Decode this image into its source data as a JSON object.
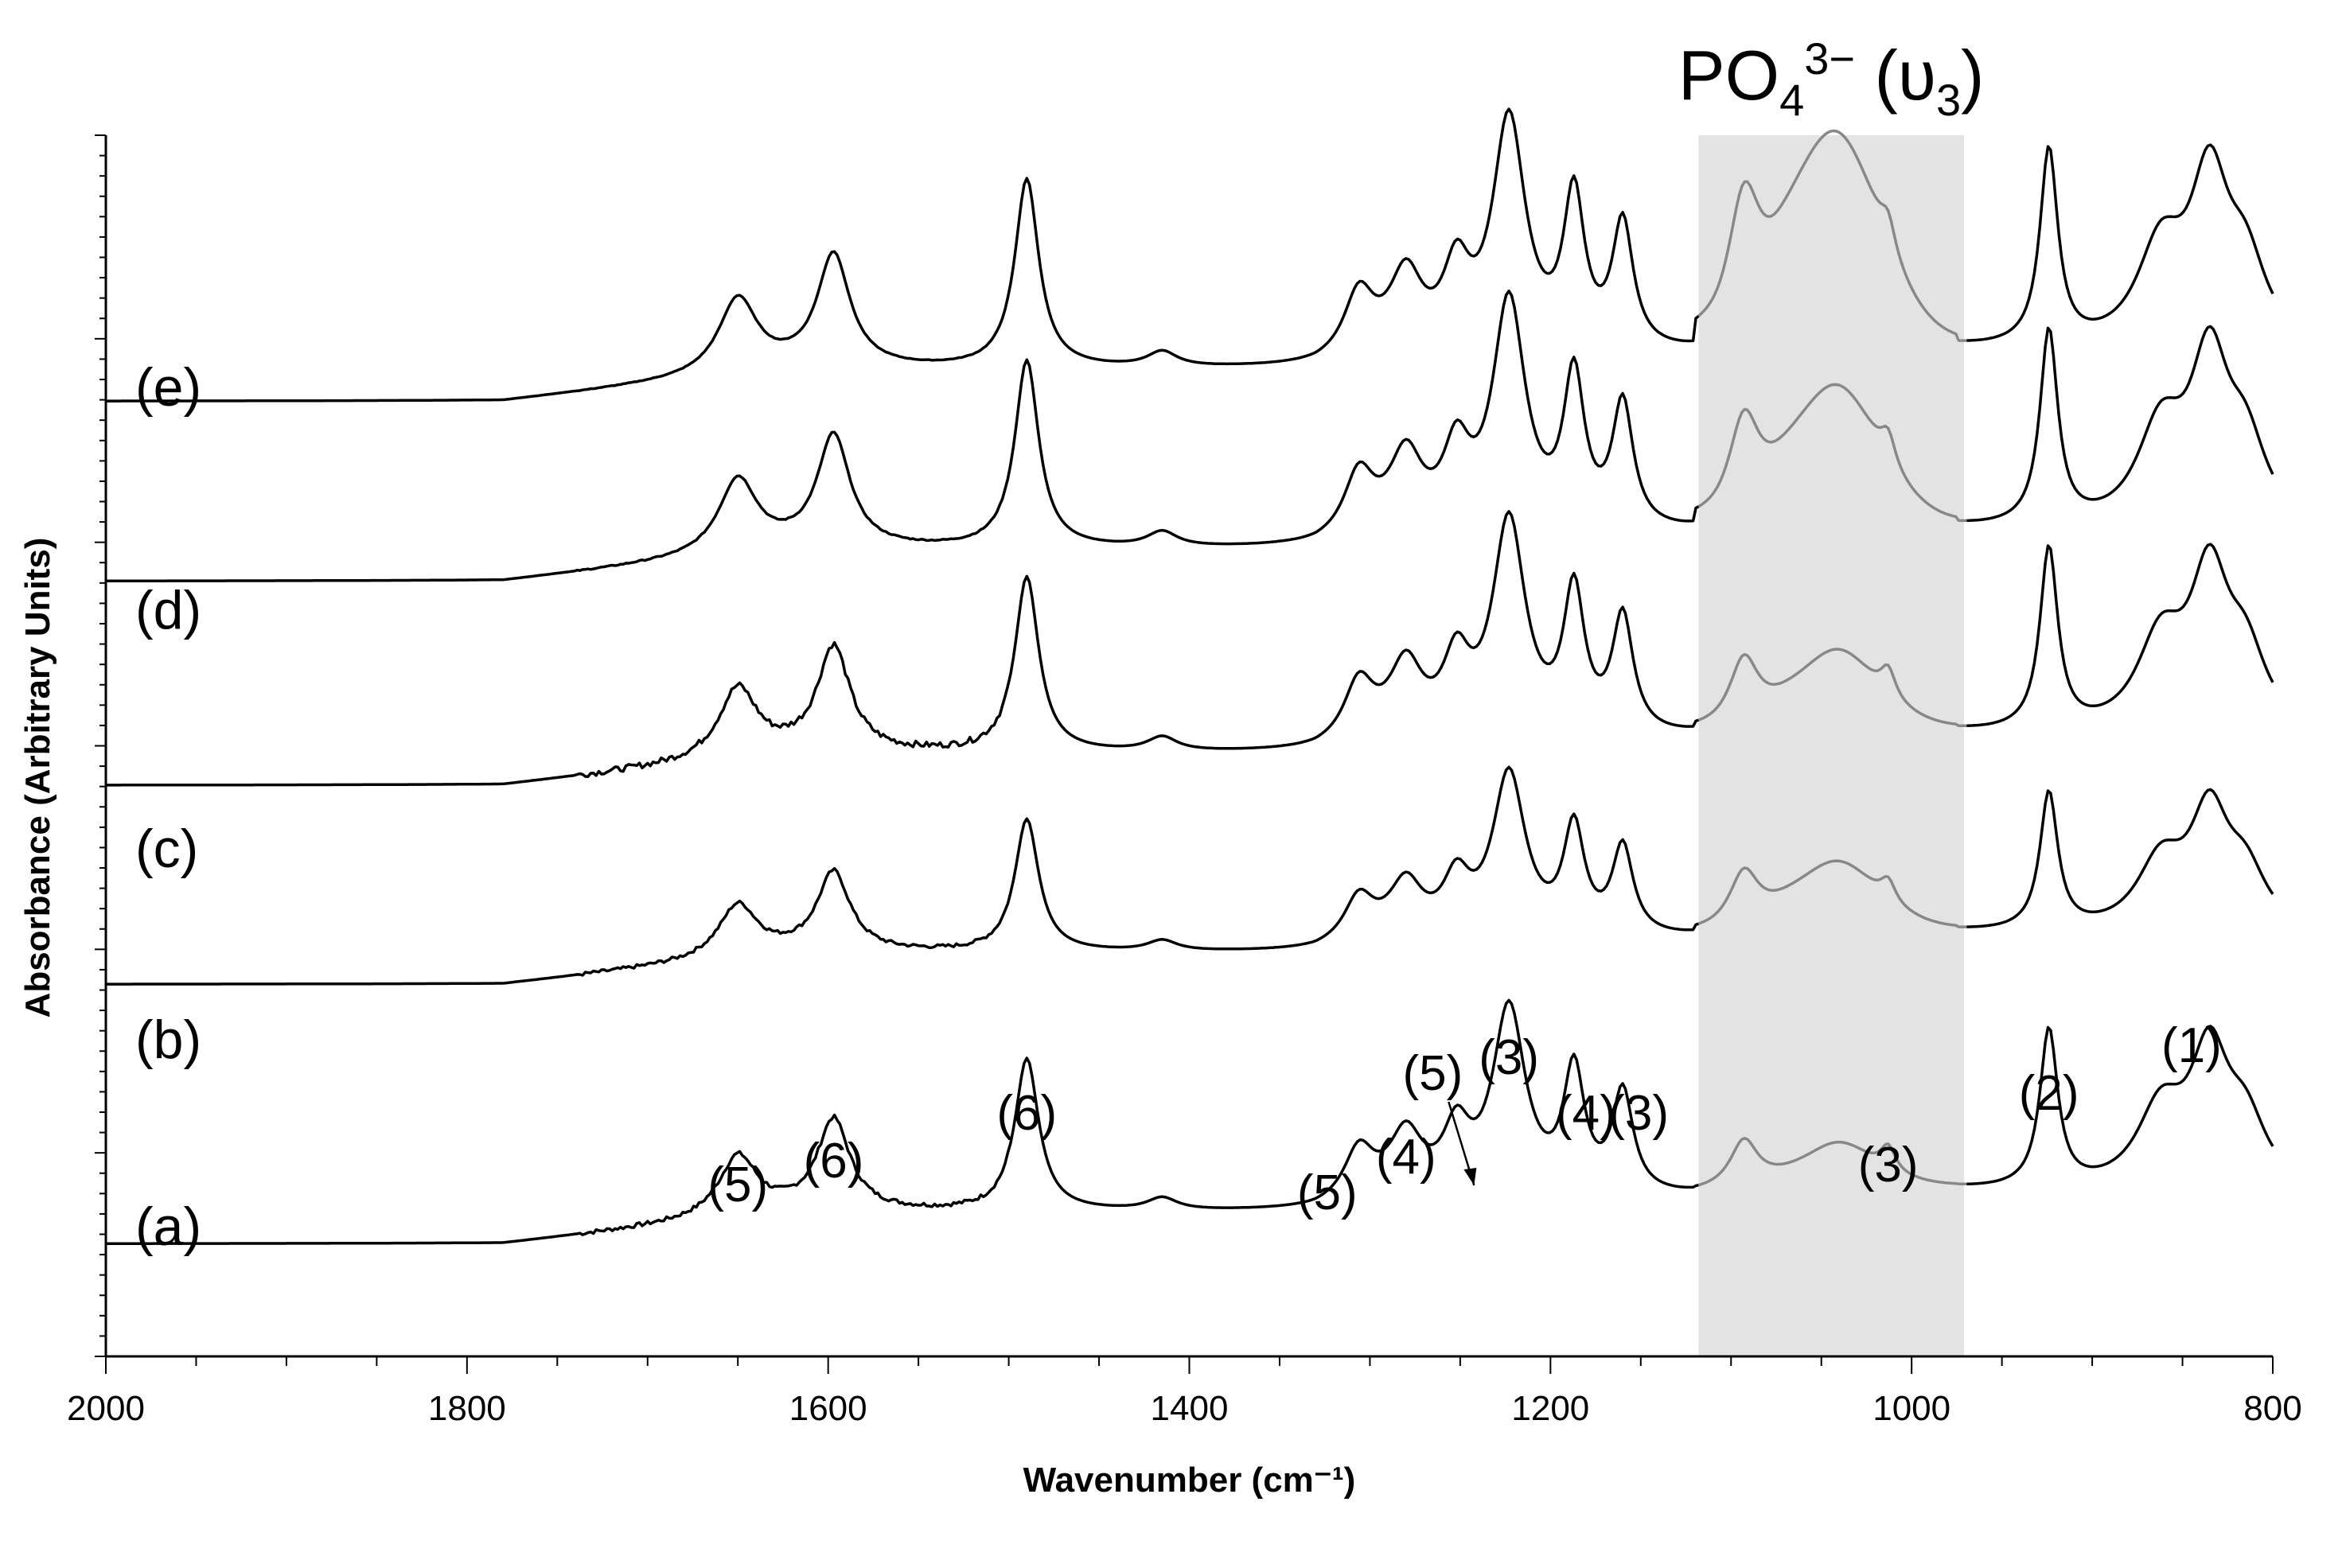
{
  "chart_data": {
    "type": "line",
    "title": "",
    "xlabel": "Wavenumber (cm⁻¹)",
    "ylabel": "Absorbance (Arbitrary Units)",
    "xlim": [
      2000,
      800
    ],
    "x_reversed": true,
    "xticks": [
      "2000",
      "1800",
      "1600",
      "1400",
      "1200",
      "1000",
      "800"
    ],
    "ylim": [
      0,
      6
    ],
    "yticks_labeled": false,
    "grid": false,
    "highlight_band": {
      "x_range": [
        1118,
        971
      ],
      "label_main": "PO",
      "label_sub": "4",
      "label_sup": "3−",
      "label_suffix": " (υ",
      "label_sub2": "3",
      "label_close": ")",
      "color": "#e3e3e3"
    },
    "colors": {
      "line": "#000000",
      "band_line": "#888888"
    },
    "peaks": [
      {
        "name": "p5a",
        "x": 1650,
        "h": 0.3,
        "w": 13
      },
      {
        "name": "p6a",
        "x": 1597,
        "h": 0.45,
        "w": 11
      },
      {
        "name": "p6b",
        "x": 1490,
        "h": 0.75,
        "w": 8
      },
      {
        "name": "p1415",
        "x": 1415,
        "h": 0.06,
        "w": 10
      },
      {
        "name": "p5b",
        "x": 1306,
        "h": 0.25,
        "w": 10
      },
      {
        "name": "p4a",
        "x": 1280,
        "h": 0.3,
        "w": 11
      },
      {
        "name": "p5c",
        "x": 1252,
        "h": 0.3,
        "w": 9
      },
      {
        "name": "p3a",
        "x": 1223,
        "h": 0.92,
        "w": 11
      },
      {
        "name": "p4b",
        "x": 1187,
        "h": 0.6,
        "w": 7
      },
      {
        "name": "p3b",
        "x": 1160,
        "h": 0.5,
        "w": 7
      },
      {
        "name": "p1093",
        "x": 1093,
        "h": 0.2,
        "w": 9
      },
      {
        "name": "p1040",
        "x": 1040,
        "h": 0.2,
        "w": 26
      },
      {
        "name": "p3c",
        "x": 1013,
        "h": 0.12,
        "w": 5
      },
      {
        "name": "p2",
        "x": 924,
        "h": 0.78,
        "w": 6
      },
      {
        "name": "p1a",
        "x": 862,
        "h": 0.38,
        "w": 16
      },
      {
        "name": "p1b",
        "x": 835,
        "h": 0.63,
        "w": 13
      },
      {
        "name": "p820",
        "x": 815,
        "h": 0.3,
        "w": 14
      }
    ],
    "series": [
      {
        "name": "(a)",
        "offset": 0.65,
        "scale": 1.0,
        "band_amp": 0.15,
        "noise": 0.035,
        "baseline": {
          "x0": 1120,
          "v0": 0.0,
          "v1": 0.3,
          "step": 0.17,
          "step_x": 1120
        }
      },
      {
        "name": "(b)",
        "offset": 2.15,
        "scale": 0.87,
        "band_amp": 0.68,
        "noise": 0.03,
        "baseline": {
          "x0": 1120,
          "v0": 0.0,
          "v1": 0.28,
          "step": 0.15,
          "step_x": 1120
        }
      },
      {
        "name": "(c)",
        "offset": 3.3,
        "scale": 1.15,
        "band_amp": 0.7,
        "noise": 0.05,
        "baseline": {
          "x0": 1120,
          "v0": 0.0,
          "v1": 0.25,
          "step": 0.12,
          "step_x": 1120
        }
      },
      {
        "name": "(d)",
        "offset": 4.48,
        "scale": 1.23,
        "band_amp": 1.75,
        "noise": 0.01,
        "baseline": {
          "x0": 1120,
          "v0": 0.0,
          "v1": 0.25,
          "step": 0.12,
          "step_x": 1120
        }
      },
      {
        "name": "(e)",
        "offset": 5.52,
        "scale": 1.24,
        "band_amp": 3.1,
        "noise": 0.005,
        "baseline": {
          "x0": 1120,
          "v0": 0.0,
          "v1": 0.25,
          "step": 0.12,
          "step_x": 1120
        }
      }
    ],
    "trace_labels": [
      "(e)",
      "(d)",
      "(c)",
      "(b)",
      "(a)"
    ],
    "peak_annotations": [
      {
        "text": "(5)",
        "x": 1650
      },
      {
        "text": "(6)",
        "x": 1597
      },
      {
        "text": "(6)",
        "x": 1490
      },
      {
        "text": "(5)",
        "x": 1306
      },
      {
        "text": "(4)",
        "x": 1280
      },
      {
        "text": "(5)",
        "x": 1252
      },
      {
        "text": "(3)",
        "x": 1223
      },
      {
        "text": "(4)",
        "x": 1187
      },
      {
        "text": "(3)",
        "x": 1160
      },
      {
        "text": "(3)",
        "x": 1013
      },
      {
        "text": "(2)",
        "x": 924
      },
      {
        "text": "(1)",
        "x": 845
      }
    ]
  }
}
